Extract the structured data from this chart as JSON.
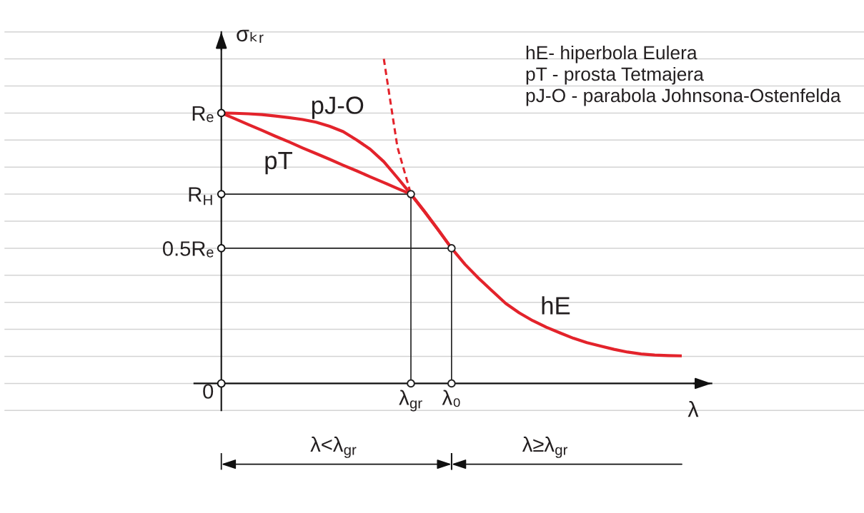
{
  "chart_data": {
    "type": "line",
    "xlabel": "λ",
    "ylabel": "σₖᵣ",
    "categories": [
      null,
      null,
      null,
      null,
      null,
      null,
      null,
      null,
      null,
      null,
      null,
      null,
      null,
      null,
      "λ$_{gr}$",
      null,
      null,
      "λ₀",
      null,
      null,
      null,
      null,
      null,
      null,
      null,
      null,
      null,
      null,
      null,
      null,
      null,
      null,
      null,
      null,
      null
    ],
    "ylim": [
      -0.1,
      1.3
    ],
    "yticks": [
      {
        "value": -0.1,
        "label": null
      },
      0,
      {
        "value": 0.1,
        "label": null
      },
      {
        "value": 0.2,
        "label": null
      },
      {
        "value": 0.3,
        "label": null
      },
      {
        "value": 0.4,
        "label": null
      },
      {
        "value": 0.5,
        "label": "0.5Rₑ"
      },
      {
        "value": 0.6,
        "label": null
      },
      {
        "value": 0.7,
        "label": "R$_{H}$"
      },
      {
        "value": 0.8,
        "label": null
      },
      {
        "value": 0.9,
        "label": null
      },
      {
        "value": 1.0,
        "label": "Rₑ"
      },
      {
        "value": 1.1,
        "label": null
      },
      {
        "value": 1.2,
        "label": null
      },
      {
        "value": 1.3,
        "label": null
      }
    ],
    "grid": "y",
    "line_style": "solid",
    "marker": "none",
    "series": [
      {
        "name": "pJ-O",
        "color": "#e3232b",
        "values": [
          1,
          0.999,
          0.997,
          0.994,
          0.989,
          0.983,
          0.976,
          0.966,
          0.951,
          0.931,
          0.9,
          0.866,
          0.82,
          0.761,
          0.7,
          0.636,
          0.569,
          0.5,
          null,
          null,
          null,
          null,
          null,
          null,
          null,
          null,
          null,
          null,
          null,
          null,
          null,
          null,
          null,
          null,
          null
        ]
      },
      {
        "name": "pT",
        "color": "#e3232b",
        "values": [
          1,
          0.979,
          0.957,
          0.936,
          0.914,
          0.893,
          0.871,
          0.85,
          0.829,
          0.807,
          0.786,
          0.764,
          0.743,
          0.721,
          0.7,
          null,
          null,
          null,
          null,
          null,
          null,
          null,
          null,
          null,
          null,
          null,
          null,
          null,
          null,
          null,
          null,
          null,
          null,
          null,
          null
        ]
      },
      {
        "name": "hE",
        "color": "#e3232b",
        "values": [
          null,
          null,
          null,
          null,
          null,
          null,
          null,
          null,
          null,
          null,
          null,
          null,
          null,
          null,
          0.7,
          0.636,
          0.569,
          0.5,
          0.44,
          0.389,
          0.342,
          0.296,
          0.261,
          0.232,
          0.208,
          0.187,
          0.167,
          0.151,
          0.138,
          0.126,
          0.116,
          0.109,
          0.105,
          0.103,
          0.102
        ]
      },
      {
        "color": "#e3232b",
        "line_style": "dashed",
        "values": [
          null,
          null,
          null,
          null,
          null,
          null,
          null,
          null,
          null,
          null,
          null,
          null,
          1.2,
          0.875,
          0.7,
          null,
          null,
          null,
          null,
          null,
          null,
          null,
          null,
          null,
          null,
          null,
          null,
          null,
          null,
          null,
          null,
          null,
          null,
          null,
          null
        ]
      },
      {
        "color": "#222222",
        "values": [
          0.7,
          0.7,
          0.7,
          0.7,
          0.7,
          0.7,
          0.7,
          0.7,
          0.7,
          0.7,
          0.7,
          0.7,
          0.7,
          0.7,
          0.7,
          null,
          null,
          null,
          null,
          null,
          null,
          null,
          null,
          null,
          null,
          null,
          null,
          null,
          null,
          null,
          null,
          null,
          null,
          null,
          null
        ]
      },
      {
        "color": "#222222",
        "values": [
          0.5,
          0.5,
          0.5,
          0.5,
          0.5,
          0.5,
          0.5,
          0.5,
          0.5,
          0.5,
          0.5,
          0.5,
          0.5,
          0.5,
          0.5,
          0.5,
          0.5,
          0.5,
          null,
          null,
          null,
          null,
          null,
          null,
          null,
          null,
          null,
          null,
          null,
          null,
          null,
          null,
          null,
          null,
          null
        ]
      },
      {
        "color": "#222222",
        "marker": "circle",
        "x": [
          "λ$_{gr}$",
          "λ$_{gr}$"
        ],
        "values": [
          0.7,
          0
        ]
      },
      {
        "color": "#222222",
        "marker": "circle",
        "x": [
          "λ₀",
          "λ₀"
        ],
        "values": [
          0.5,
          0
        ]
      },
      {
        "type": "scatter",
        "color": "#111111",
        "marker": "circle",
        "values": [
          0,
          null,
          null,
          null,
          null,
          null,
          null,
          null,
          null,
          null,
          null,
          null,
          null,
          null,
          null,
          null,
          null,
          null,
          null,
          null,
          null,
          null,
          null,
          null,
          null,
          null,
          null,
          null,
          null,
          null,
          null,
          null,
          null,
          null,
          null
        ]
      }
    ],
    "annotations": [
      "hE- hiperbola Eulera",
      "pT - prosta Tetmajera",
      "pJ-O - parabola Johnsona-Ostenfelda",
      "λ<λ$_{gr}$",
      "λ≥λ$_{gr}$"
    ]
  }
}
